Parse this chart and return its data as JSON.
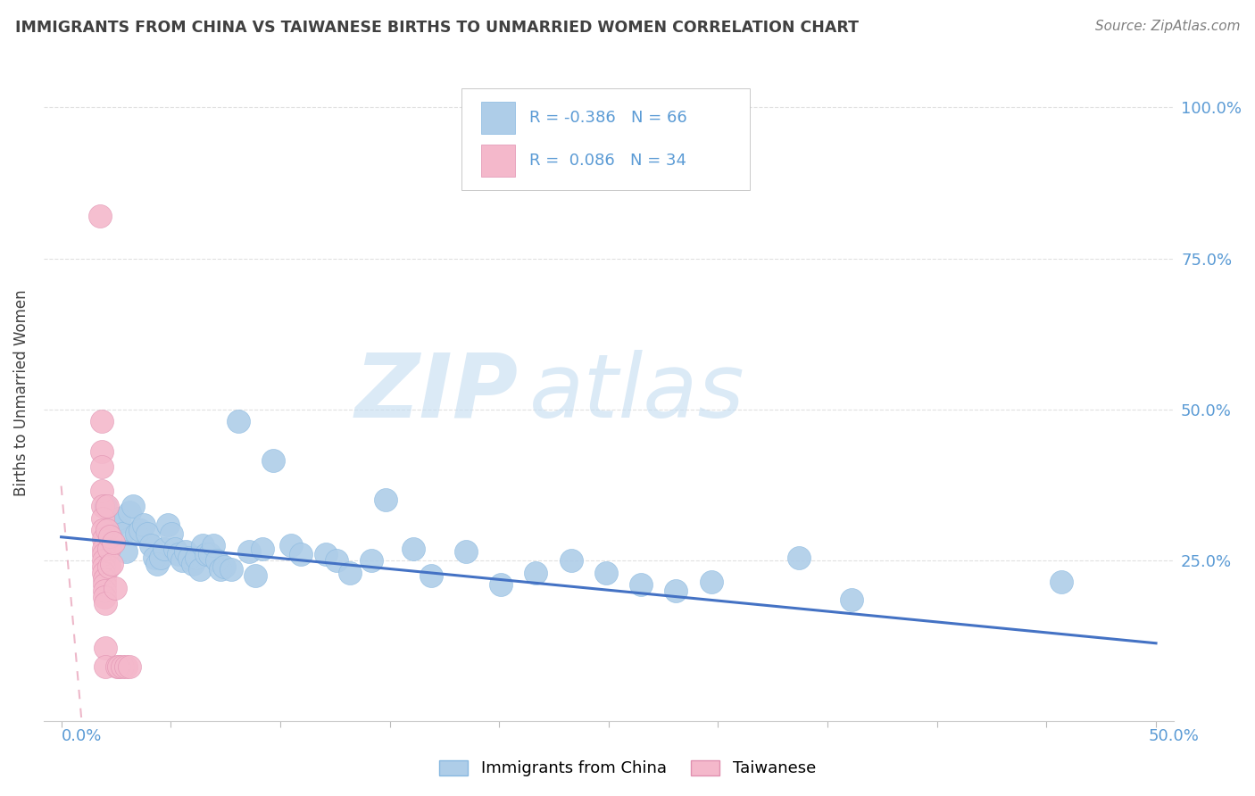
{
  "title": "IMMIGRANTS FROM CHINA VS TAIWANESE BIRTHS TO UNMARRIED WOMEN CORRELATION CHART",
  "source": "Source: ZipAtlas.com",
  "ylabel": "Births to Unmarried Women",
  "legend_r_china": "-0.386",
  "legend_n_china": "66",
  "legend_r_taiwan": "0.086",
  "legend_n_taiwan": "34",
  "watermark_zip": "ZIP",
  "watermark_atlas": "atlas",
  "color_china": "#aecde8",
  "color_taiwan": "#f4b8cb",
  "trendline_color_china": "#4472c4",
  "trendline_color_taiwan": "#e8a0b8",
  "axis_color": "#5b9bd5",
  "title_color": "#404040",
  "source_color": "#808080",
  "ylabel_color": "#404040",
  "grid_color": "#e0e0e0",
  "china_points": [
    [
      0.002,
      0.34
    ],
    [
      0.003,
      0.295
    ],
    [
      0.004,
      0.285
    ],
    [
      0.005,
      0.31
    ],
    [
      0.006,
      0.32
    ],
    [
      0.007,
      0.295
    ],
    [
      0.008,
      0.265
    ],
    [
      0.009,
      0.33
    ],
    [
      0.01,
      0.34
    ],
    [
      0.011,
      0.295
    ],
    [
      0.012,
      0.3
    ],
    [
      0.013,
      0.31
    ],
    [
      0.014,
      0.295
    ],
    [
      0.015,
      0.275
    ],
    [
      0.016,
      0.255
    ],
    [
      0.017,
      0.245
    ],
    [
      0.018,
      0.255
    ],
    [
      0.019,
      0.27
    ],
    [
      0.02,
      0.31
    ],
    [
      0.021,
      0.295
    ],
    [
      0.022,
      0.27
    ],
    [
      0.023,
      0.26
    ],
    [
      0.024,
      0.25
    ],
    [
      0.025,
      0.265
    ],
    [
      0.026,
      0.255
    ],
    [
      0.027,
      0.245
    ],
    [
      0.028,
      0.255
    ],
    [
      0.029,
      0.235
    ],
    [
      0.03,
      0.275
    ],
    [
      0.031,
      0.26
    ],
    [
      0.032,
      0.26
    ],
    [
      0.033,
      0.275
    ],
    [
      0.034,
      0.25
    ],
    [
      0.035,
      0.235
    ],
    [
      0.036,
      0.24
    ],
    [
      0.038,
      0.235
    ],
    [
      0.04,
      0.48
    ],
    [
      0.043,
      0.265
    ],
    [
      0.045,
      0.225
    ],
    [
      0.047,
      0.27
    ],
    [
      0.05,
      0.415
    ],
    [
      0.055,
      0.275
    ],
    [
      0.058,
      0.26
    ],
    [
      0.065,
      0.26
    ],
    [
      0.068,
      0.25
    ],
    [
      0.072,
      0.23
    ],
    [
      0.078,
      0.25
    ],
    [
      0.082,
      0.35
    ],
    [
      0.09,
      0.27
    ],
    [
      0.095,
      0.225
    ],
    [
      0.105,
      0.265
    ],
    [
      0.115,
      0.21
    ],
    [
      0.125,
      0.23
    ],
    [
      0.135,
      0.25
    ],
    [
      0.145,
      0.23
    ],
    [
      0.155,
      0.21
    ],
    [
      0.165,
      0.2
    ],
    [
      0.175,
      0.215
    ],
    [
      0.2,
      0.255
    ],
    [
      0.215,
      0.185
    ],
    [
      0.275,
      0.215
    ],
    [
      0.315,
      0.175
    ],
    [
      0.37,
      0.145
    ],
    [
      0.415,
      0.125
    ],
    [
      0.345,
      0.11
    ],
    [
      0.45,
      0.22
    ]
  ],
  "taiwan_points": [
    [
      0.0005,
      0.82
    ],
    [
      0.001,
      0.48
    ],
    [
      0.001,
      0.43
    ],
    [
      0.001,
      0.405
    ],
    [
      0.0012,
      0.365
    ],
    [
      0.0013,
      0.34
    ],
    [
      0.0013,
      0.32
    ],
    [
      0.0014,
      0.3
    ],
    [
      0.0015,
      0.285
    ],
    [
      0.0015,
      0.27
    ],
    [
      0.0016,
      0.26
    ],
    [
      0.0016,
      0.25
    ],
    [
      0.0017,
      0.24
    ],
    [
      0.0017,
      0.23
    ],
    [
      0.0018,
      0.22
    ],
    [
      0.0018,
      0.21
    ],
    [
      0.0019,
      0.2
    ],
    [
      0.0019,
      0.19
    ],
    [
      0.002,
      0.18
    ],
    [
      0.002,
      0.105
    ],
    [
      0.002,
      0.075
    ],
    [
      0.0025,
      0.34
    ],
    [
      0.0025,
      0.3
    ],
    [
      0.003,
      0.27
    ],
    [
      0.003,
      0.24
    ],
    [
      0.0035,
      0.29
    ],
    [
      0.004,
      0.245
    ],
    [
      0.0045,
      0.28
    ],
    [
      0.005,
      0.205
    ],
    [
      0.0055,
      0.075
    ],
    [
      0.006,
      0.075
    ],
    [
      0.007,
      0.075
    ],
    [
      0.008,
      0.075
    ],
    [
      0.009,
      0.075
    ]
  ],
  "xlim": [
    0.0,
    0.5
  ],
  "ylim": [
    0.0,
    1.05
  ],
  "xticks": [
    0.0,
    0.05,
    0.1,
    0.15,
    0.2,
    0.25,
    0.3,
    0.35,
    0.4,
    0.45,
    0.5
  ],
  "yticks": [
    0.0,
    0.25,
    0.5,
    0.75,
    1.0
  ]
}
